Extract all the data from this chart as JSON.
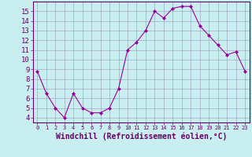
{
  "x": [
    0,
    1,
    2,
    3,
    4,
    5,
    6,
    7,
    8,
    9,
    10,
    11,
    12,
    13,
    14,
    15,
    16,
    17,
    18,
    19,
    20,
    21,
    22,
    23
  ],
  "y": [
    8.8,
    6.5,
    5.0,
    4.0,
    6.5,
    5.0,
    4.5,
    4.5,
    5.0,
    7.0,
    11.0,
    11.8,
    13.0,
    15.0,
    14.3,
    15.3,
    15.5,
    15.5,
    13.5,
    12.5,
    11.5,
    10.5,
    10.8,
    8.8
  ],
  "line_color": "#990099",
  "marker": "D",
  "marker_size": 2.0,
  "bg_color": "#c8eef0",
  "grid_color": "#9999bb",
  "xlabel": "Windchill (Refroidissement éolien,°C)",
  "ylim": [
    3.5,
    16.0
  ],
  "xlim": [
    -0.5,
    23.5
  ],
  "yticks": [
    4,
    5,
    6,
    7,
    8,
    9,
    10,
    11,
    12,
    13,
    14,
    15
  ],
  "xticks": [
    0,
    1,
    2,
    3,
    4,
    5,
    6,
    7,
    8,
    9,
    10,
    11,
    12,
    13,
    14,
    15,
    16,
    17,
    18,
    19,
    20,
    21,
    22,
    23
  ],
  "xlabel_fontsize": 7.0,
  "tick_fontsize": 6.5,
  "tick_color": "#660066",
  "axis_color": "#660066"
}
